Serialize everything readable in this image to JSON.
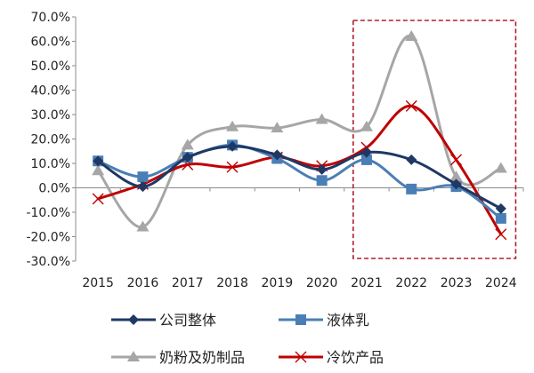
{
  "chart_data": {
    "type": "line",
    "x": [
      "2015",
      "2016",
      "2017",
      "2018",
      "2019",
      "2020",
      "2021",
      "2022",
      "2023",
      "2024"
    ],
    "ylim": [
      -30,
      70
    ],
    "yticks": [
      70,
      60,
      50,
      40,
      30,
      20,
      10,
      0,
      -10,
      -20,
      -30
    ],
    "ytick_labels": [
      "70.0%",
      "60.0%",
      "50.0%",
      "40.0%",
      "30.0%",
      "20.0%",
      "10.0%",
      "0.0%",
      "-10.0%",
      "-20.0%",
      "-30.0%"
    ],
    "grid": false,
    "legend_position": "bottom",
    "highlight": {
      "type": "dashed-rectangle",
      "x_from": "2021",
      "x_to": "2024",
      "color": "#b01e2e"
    },
    "series": [
      {
        "name": "公司整体",
        "color": "#1f3864",
        "marker": "diamond",
        "smooth": true,
        "values": [
          11.0,
          0.5,
          12.5,
          17.0,
          13.5,
          7.5,
          14.5,
          11.5,
          1.5,
          -8.5
        ]
      },
      {
        "name": "液体乳",
        "color": "#4a7fb5",
        "marker": "square",
        "smooth": true,
        "values": [
          11.0,
          4.5,
          12.5,
          17.5,
          12.0,
          3.0,
          11.5,
          -0.5,
          0.5,
          -12.5
        ]
      },
      {
        "name": "奶粉及奶制品",
        "color": "#a6a6a6",
        "marker": "triangle",
        "smooth": true,
        "values": [
          7.0,
          -16.0,
          17.5,
          25.0,
          24.5,
          28.0,
          25.0,
          62.0,
          4.5,
          8.0
        ]
      },
      {
        "name": "冷饮产品",
        "color": "#c00000",
        "marker": "x",
        "smooth": true,
        "values": [
          -4.5,
          1.5,
          9.5,
          8.5,
          12.5,
          9.0,
          16.5,
          33.5,
          11.5,
          -19.0
        ]
      }
    ]
  }
}
